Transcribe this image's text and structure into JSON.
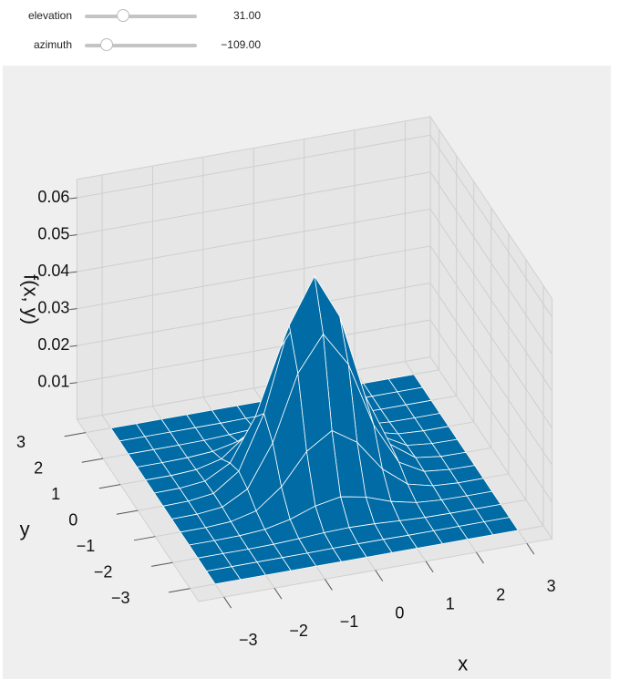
{
  "controls": {
    "sliders": [
      {
        "label": "elevation",
        "value": 31,
        "value_label": "31.00"
      },
      {
        "label": "azimuth",
        "value": -109,
        "value_label": "−109.00"
      }
    ]
  },
  "chart_data": {
    "type": "surface",
    "x_label": "x",
    "y_label": "y",
    "z_label": "f(x, y)",
    "color": "#006ba4",
    "xlim": [
      -3.5,
      3.5
    ],
    "ylim": [
      -3.5,
      3.5
    ],
    "zlim": [
      0,
      0.065
    ],
    "xticks": [
      {
        "value": -3,
        "label": "−3"
      },
      {
        "value": -2,
        "label": "−2"
      },
      {
        "value": -1,
        "label": "−1"
      },
      0,
      1,
      2,
      3
    ],
    "yticks": [
      {
        "value": -3,
        "label": "−3"
      },
      {
        "value": -2,
        "label": "−2"
      },
      {
        "value": -1,
        "label": "−1"
      },
      0,
      1,
      2,
      3
    ],
    "zticks": [
      0.01,
      0.02,
      0.03,
      0.04,
      0.05,
      0.06
    ],
    "x": [
      -3,
      -2.5,
      -2,
      -1.5,
      -1,
      -0.5,
      0,
      0.5,
      1,
      1.5,
      2,
      2.5,
      3
    ],
    "y": [
      -3,
      -2.5,
      -2,
      -1.5,
      -1,
      -0.5,
      0,
      0.5,
      1,
      1.5,
      2,
      2.5,
      3
    ],
    "z": [
      [
        0,
        0,
        0,
        0,
        0,
        0,
        0,
        0,
        0,
        0,
        0,
        0,
        0
      ],
      [
        0,
        0,
        0,
        0,
        0,
        0.0001,
        0.0001,
        0.0001,
        0,
        0,
        0,
        0,
        0
      ],
      [
        0,
        0,
        0,
        0.0001,
        0.0004,
        0.0008,
        0.001,
        0.0008,
        0.0004,
        0.0001,
        0,
        0,
        0
      ],
      [
        0,
        0,
        0.0001,
        0.0006,
        0.0021,
        0.0045,
        0.0058,
        0.0045,
        0.0021,
        0.0006,
        0.0001,
        0,
        0
      ],
      [
        0,
        0,
        0.0004,
        0.0021,
        0.0074,
        0.0158,
        0.0202,
        0.0158,
        0.0074,
        0.0021,
        0.0004,
        0,
        0
      ],
      [
        0,
        0.0001,
        0.0008,
        0.0045,
        0.0158,
        0.0334,
        0.0428,
        0.0334,
        0.0158,
        0.0045,
        0.0008,
        0.0001,
        0
      ],
      [
        0,
        0.0001,
        0.001,
        0.0058,
        0.0202,
        0.0428,
        0.055,
        0.0428,
        0.0202,
        0.0058,
        0.001,
        0.0001,
        0
      ],
      [
        0,
        0.0001,
        0.0008,
        0.0045,
        0.0158,
        0.0334,
        0.0428,
        0.0334,
        0.0158,
        0.0045,
        0.0008,
        0.0001,
        0
      ],
      [
        0,
        0,
        0.0004,
        0.0021,
        0.0074,
        0.0158,
        0.0202,
        0.0158,
        0.0074,
        0.0021,
        0.0004,
        0,
        0
      ],
      [
        0,
        0,
        0.0001,
        0.0006,
        0.0021,
        0.0045,
        0.0058,
        0.0045,
        0.0021,
        0.0006,
        0.0001,
        0,
        0
      ],
      [
        0,
        0,
        0,
        0.0001,
        0.0004,
        0.0008,
        0.001,
        0.0008,
        0.0004,
        0.0001,
        0,
        0,
        0
      ],
      [
        0,
        0,
        0,
        0,
        0,
        0.0001,
        0.0001,
        0.0001,
        0,
        0,
        0,
        0,
        0
      ],
      [
        0,
        0,
        0,
        0,
        0,
        0,
        0,
        0,
        0,
        0,
        0,
        0,
        0
      ]
    ]
  }
}
